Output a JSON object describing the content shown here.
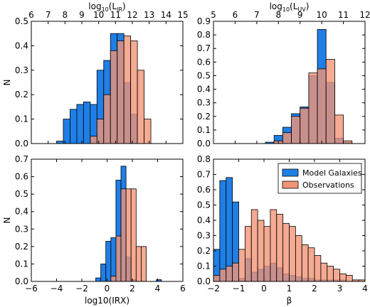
{
  "colors": {
    "model": "#1f7fe6",
    "observations": "#f29577",
    "overlap": "#9c7a82"
  },
  "chart_data": [
    {
      "type": "bar",
      "title": "",
      "xlabel": "",
      "ylabel": "N",
      "x_axis_position": "top",
      "top_axis_label_main": "log",
      "top_axis_label_sub": "10",
      "top_axis_label_tail": "(L",
      "top_axis_label_sub2": "IR",
      "top_axis_label_end": ")",
      "xlim": [
        6,
        15
      ],
      "ylim": [
        0,
        0.5
      ],
      "xticks": [
        "6",
        "7",
        "8",
        "9",
        "10",
        "11",
        "12",
        "13",
        "14",
        "15"
      ],
      "yticks": [
        "0.0",
        "0.1",
        "0.2",
        "0.3",
        "0.4",
        "0.5"
      ],
      "bin_edges": [
        7.5,
        7.9,
        8.3,
        8.7,
        9.1,
        9.5,
        9.9,
        10.3,
        10.7,
        11.1,
        11.5,
        11.9,
        12.3,
        12.7,
        13.1
      ],
      "series": [
        {
          "name": "Model Galaxies",
          "values": [
            0.01,
            0.1,
            0.14,
            0.16,
            0.17,
            0.16,
            0.3,
            0.34,
            0.45,
            0.45,
            0.25,
            0.12,
            0,
            0
          ]
        },
        {
          "name": "Observations",
          "values": [
            0,
            0,
            0,
            0,
            0,
            0.03,
            0.1,
            0.2,
            0.38,
            0.42,
            0.44,
            0.42,
            0.3,
            0.1
          ]
        }
      ]
    },
    {
      "type": "bar",
      "title": "",
      "xlabel": "",
      "ylabel": "",
      "x_axis_position": "top",
      "top_axis_label_main": "log",
      "top_axis_label_sub": "10",
      "top_axis_label_tail": "(L",
      "top_axis_label_sub2": "UV",
      "top_axis_label_end": ")",
      "xlim": [
        5,
        12
      ],
      "ylim": [
        0,
        0.9
      ],
      "xticks": [
        "5",
        "6",
        "7",
        "8",
        "9",
        "10",
        "11",
        "12"
      ],
      "yticks": [
        "0.0",
        "0.1",
        "0.2",
        "0.3",
        "0.4",
        "0.5",
        "0.6",
        "0.7",
        "0.8",
        "0.9"
      ],
      "bin_edges": [
        7.4,
        7.8,
        8.2,
        8.6,
        9.0,
        9.4,
        9.8,
        10.2,
        10.6,
        11.0,
        11.4
      ],
      "series": [
        {
          "name": "Model Galaxies",
          "values": [
            0.01,
            0.06,
            0.12,
            0.22,
            0.27,
            0.5,
            0.84,
            0.45,
            0.04,
            0.01
          ]
        },
        {
          "name": "Observations",
          "values": [
            0,
            0.02,
            0.08,
            0.2,
            0.26,
            0.52,
            0.55,
            0.62,
            0.21,
            0.02
          ]
        }
      ]
    },
    {
      "type": "bar",
      "title": "",
      "xlabel": "log10(IRX)",
      "ylabel": "N",
      "xlim": [
        -6,
        6
      ],
      "ylim": [
        0,
        0.7
      ],
      "xticks": [
        "−6",
        "−4",
        "−2",
        "0",
        "2",
        "4",
        "6"
      ],
      "yticks": [
        "0.0",
        "0.1",
        "0.2",
        "0.3",
        "0.4",
        "0.5",
        "0.6",
        "0.7"
      ],
      "bin_edges": [
        -0.9,
        -0.5,
        -0.1,
        0.3,
        0.7,
        1.1,
        1.5,
        1.9,
        2.3,
        2.7,
        3.1,
        3.5,
        3.9,
        4.3
      ],
      "series": [
        {
          "name": "Model Galaxies",
          "values": [
            0.02,
            0.1,
            0.23,
            0.25,
            0.58,
            0.66,
            0.14,
            0.01,
            0,
            0,
            0,
            0,
            0.01
          ]
        },
        {
          "name": "Observations",
          "values": [
            0,
            0,
            0,
            0.03,
            0.26,
            0.53,
            0.53,
            0.53,
            0.2,
            0.2,
            0,
            0,
            0
          ]
        }
      ]
    },
    {
      "type": "bar",
      "title": "",
      "xlabel": "β",
      "ylabel": "",
      "xlim": [
        -2,
        4
      ],
      "ylim": [
        0,
        0.8
      ],
      "xticks": [
        "−2",
        "−1",
        "0",
        "1",
        "2",
        "3",
        "4"
      ],
      "yticks": [
        "0.0",
        "0.1",
        "0.2",
        "0.3",
        "0.4",
        "0.5",
        "0.6",
        "0.7",
        "0.8"
      ],
      "legend_position": "top-right",
      "bin_edges": [
        -2.0,
        -1.75,
        -1.5,
        -1.25,
        -1.0,
        -0.75,
        -0.5,
        -0.25,
        0.0,
        0.25,
        0.5,
        0.75,
        1.0,
        1.25,
        1.5,
        1.75,
        2.0,
        2.25,
        2.5,
        2.75,
        3.0,
        3.25,
        3.5,
        3.75,
        4.0
      ],
      "series": [
        {
          "name": "Model Galaxies",
          "values": [
            0.21,
            0.66,
            0.68,
            0.52,
            0.02,
            0.15,
            0.06,
            0.08,
            0.1,
            0.12,
            0.09,
            0.05,
            0.04,
            0.03,
            0.02,
            0.02,
            0.01,
            0.01,
            0.01,
            0.01,
            0.01,
            0,
            0,
            0
          ]
        },
        {
          "name": "Observations",
          "values": [
            0.04,
            0.08,
            0.1,
            0.12,
            0.21,
            0.36,
            0.47,
            0.4,
            0.36,
            0.47,
            0.44,
            0.38,
            0.36,
            0.3,
            0.24,
            0.22,
            0.17,
            0.12,
            0.1,
            0.08,
            0.05,
            0.04,
            0.01,
            0.01
          ]
        }
      ]
    }
  ]
}
